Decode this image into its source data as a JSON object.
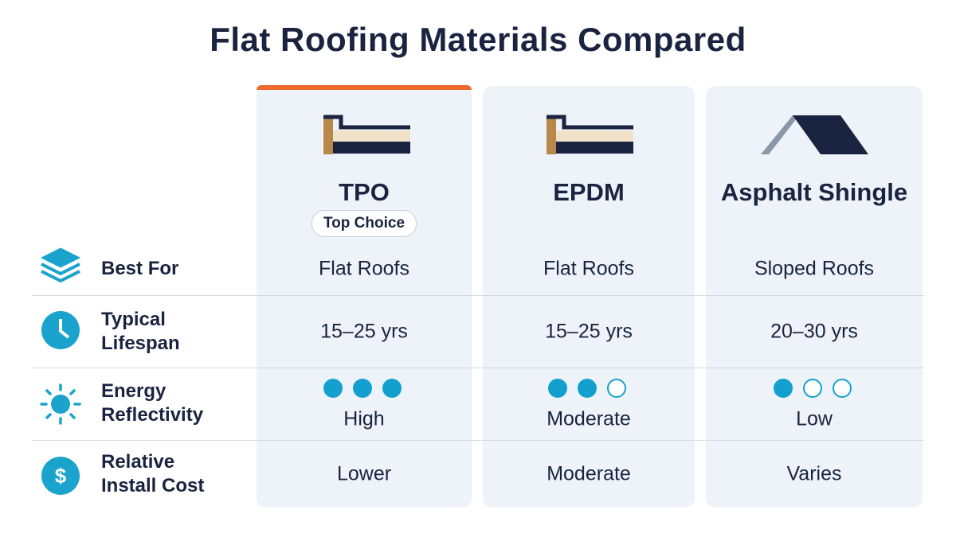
{
  "title": "Flat Roofing Materials Compared",
  "columns": [
    {
      "name": "TPO",
      "badge": "Top Choice"
    },
    {
      "name": "EPDM"
    },
    {
      "name": "Asphalt Shingle"
    }
  ],
  "rows": [
    {
      "label": [
        "Best For"
      ],
      "values": [
        "Flat Roofs",
        "Flat Roofs",
        "Sloped Roofs"
      ]
    },
    {
      "label": [
        "Typical",
        "Lifespan"
      ],
      "values": [
        "15–25 yrs",
        "15–25 yrs",
        "20–30 yrs"
      ]
    },
    {
      "label": [
        "Energy",
        "Reflectivity"
      ],
      "ratings": [
        3,
        2,
        1
      ],
      "rating_max": 3,
      "values": [
        "High",
        "Moderate",
        "Low"
      ]
    },
    {
      "label": [
        "Relative",
        "Install Cost"
      ],
      "values": [
        "Lower",
        "Moderate",
        "Varies"
      ]
    }
  ]
}
